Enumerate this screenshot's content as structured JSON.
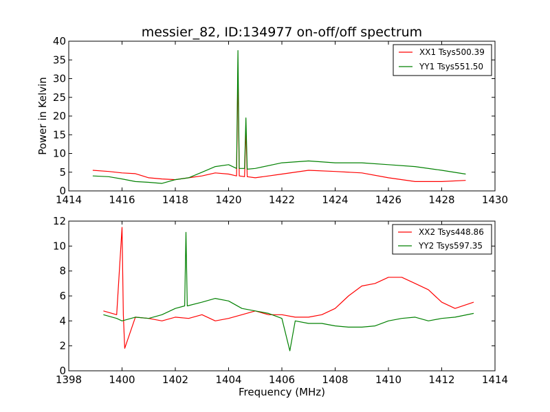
{
  "title": "messier_82, ID:134977 on-off/off spectrum",
  "chart_data": [
    {
      "type": "line",
      "title": "messier_82, ID:134977 on-off/off spectrum",
      "xlabel": "",
      "ylabel": "Power in Kelvin",
      "xlim": [
        1414,
        1430
      ],
      "ylim": [
        0,
        40
      ],
      "xticks": [
        "1414",
        "1416",
        "1418",
        "1420",
        "1422",
        "1424",
        "1426",
        "1428",
        "1430"
      ],
      "yticks": [
        "0",
        "5",
        "10",
        "15",
        "20",
        "25",
        "30",
        "35",
        "40"
      ],
      "grid": false,
      "legend_position": "top-right",
      "series": [
        {
          "name": "XX1 Tsys500.39",
          "color": "#ff0000",
          "x": [
            1414.9,
            1415.5,
            1416.0,
            1416.5,
            1417.0,
            1417.5,
            1418.0,
            1418.5,
            1419.0,
            1419.5,
            1420.0,
            1420.3,
            1420.35,
            1420.4,
            1420.6,
            1420.65,
            1420.7,
            1421.0,
            1422.0,
            1423.0,
            1424.0,
            1425.0,
            1426.0,
            1427.0,
            1428.0,
            1428.9
          ],
          "y": [
            5.5,
            5.2,
            4.8,
            4.6,
            3.5,
            3.2,
            3.0,
            3.5,
            4.0,
            4.8,
            4.5,
            4.0,
            32.0,
            4.0,
            3.8,
            17.0,
            3.8,
            3.5,
            4.5,
            5.5,
            5.2,
            4.8,
            3.5,
            2.5,
            2.5,
            2.8
          ]
        },
        {
          "name": "YY1 Tsys551.50",
          "color": "#008000",
          "x": [
            1414.9,
            1415.5,
            1416.0,
            1416.5,
            1417.0,
            1417.5,
            1418.0,
            1418.5,
            1419.0,
            1419.5,
            1420.0,
            1420.3,
            1420.35,
            1420.4,
            1420.6,
            1420.65,
            1420.7,
            1421.0,
            1422.0,
            1423.0,
            1424.0,
            1425.0,
            1426.0,
            1427.0,
            1428.0,
            1428.9
          ],
          "y": [
            4.0,
            3.8,
            3.2,
            2.5,
            2.3,
            2.0,
            3.0,
            3.5,
            5.0,
            6.5,
            7.0,
            6.0,
            37.5,
            6.0,
            6.0,
            19.5,
            5.8,
            6.0,
            7.5,
            8.0,
            7.5,
            7.5,
            7.0,
            6.5,
            5.5,
            4.5
          ]
        }
      ]
    },
    {
      "type": "line",
      "title": "",
      "xlabel": "Frequency (MHz)",
      "ylabel": "",
      "xlim": [
        1398,
        1414
      ],
      "ylim": [
        0,
        12
      ],
      "xticks": [
        "1398",
        "1400",
        "1402",
        "1404",
        "1406",
        "1408",
        "1410",
        "1412",
        "1414"
      ],
      "yticks": [
        "0",
        "2",
        "4",
        "6",
        "8",
        "10",
        "12"
      ],
      "grid": false,
      "legend_position": "top-right",
      "series": [
        {
          "name": "XX2 Tsys448.86",
          "color": "#ff0000",
          "x": [
            1399.3,
            1399.8,
            1400.0,
            1400.05,
            1400.1,
            1400.5,
            1401.0,
            1401.5,
            1402.0,
            1402.5,
            1403.0,
            1403.5,
            1404.0,
            1404.5,
            1405.0,
            1405.5,
            1406.0,
            1406.5,
            1407.0,
            1407.5,
            1408.0,
            1408.5,
            1409.0,
            1409.5,
            1410.0,
            1410.5,
            1411.0,
            1411.5,
            1412.0,
            1412.5,
            1413.2
          ],
          "y": [
            4.8,
            4.5,
            11.5,
            4.5,
            1.8,
            4.3,
            4.2,
            4.0,
            4.3,
            4.2,
            4.5,
            4.0,
            4.2,
            4.5,
            4.8,
            4.5,
            4.5,
            4.3,
            4.3,
            4.5,
            5.0,
            6.0,
            6.8,
            7.0,
            7.5,
            7.5,
            7.0,
            6.5,
            5.5,
            5.0,
            5.5
          ]
        },
        {
          "name": "YY2 Tsys597.35",
          "color": "#008000",
          "x": [
            1399.3,
            1399.8,
            1400.0,
            1400.5,
            1401.0,
            1401.5,
            1402.0,
            1402.35,
            1402.4,
            1402.45,
            1403.0,
            1403.5,
            1404.0,
            1404.5,
            1405.0,
            1405.5,
            1406.0,
            1406.3,
            1406.5,
            1407.0,
            1407.5,
            1408.0,
            1408.5,
            1409.0,
            1409.5,
            1410.0,
            1410.5,
            1411.0,
            1411.5,
            1412.0,
            1412.5,
            1413.2
          ],
          "y": [
            4.5,
            4.2,
            4.0,
            4.3,
            4.2,
            4.5,
            5.0,
            5.2,
            11.1,
            5.2,
            5.5,
            5.8,
            5.6,
            5.0,
            4.8,
            4.6,
            4.2,
            1.6,
            4.0,
            3.8,
            3.8,
            3.6,
            3.5,
            3.5,
            3.6,
            4.0,
            4.2,
            4.3,
            4.0,
            4.2,
            4.3,
            4.6
          ]
        }
      ]
    }
  ]
}
